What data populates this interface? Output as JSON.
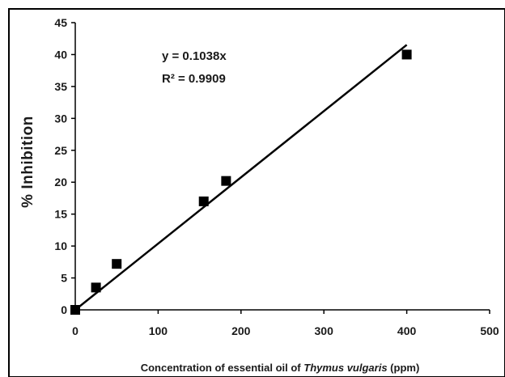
{
  "chart_data": {
    "type": "scatter",
    "title": "",
    "xlabel": {
      "prefix": "Concentration of essential oil of ",
      "species": "Thymus vulgaris",
      "suffix": " (ppm)"
    },
    "ylabel": "% Inhibition",
    "xlim": [
      0,
      500
    ],
    "ylim": [
      0,
      45
    ],
    "x_ticks": [
      "0",
      "100",
      "200",
      "300",
      "400",
      "500"
    ],
    "y_ticks": [
      "0",
      "5",
      "10",
      "15",
      "20",
      "25",
      "30",
      "35",
      "40",
      "45"
    ],
    "grid": false,
    "legend": "none",
    "series": [
      {
        "marker": "square",
        "color": "#000000",
        "points": [
          {
            "x": 0,
            "y": 0
          },
          {
            "x": 25,
            "y": 3.5
          },
          {
            "x": 50,
            "y": 7.2
          },
          {
            "x": 155,
            "y": 17
          },
          {
            "x": 182,
            "y": 20.2
          },
          {
            "x": 400,
            "y": 40
          }
        ]
      }
    ],
    "trendline": {
      "type": "linear",
      "slope": 0.1038,
      "x_range": [
        0,
        400
      ],
      "color": "#000000"
    },
    "annotations": {
      "equation": "y = 0.1038x",
      "r_squared": "R² = 0.9909"
    }
  }
}
